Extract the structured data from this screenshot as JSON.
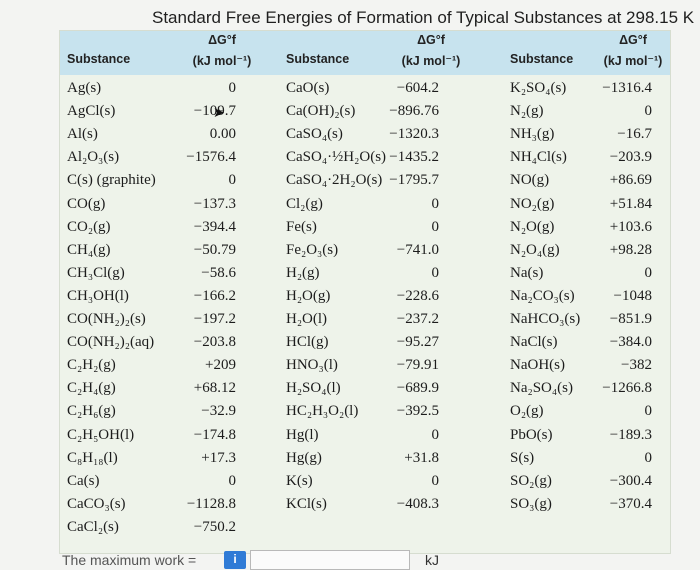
{
  "title": "Standard Free Energies of Formation of Typical Substances at 298.15 K",
  "header": {
    "substance_label": "Substance",
    "dg_label": "ΔG°f",
    "unit_label": "(kJ mol⁻¹)"
  },
  "columns": [
    {
      "rows": [
        {
          "substance": "Ag(s)",
          "value": "0"
        },
        {
          "substance": "AgCl(s)",
          "value": "−109.7"
        },
        {
          "substance": "Al(s)",
          "value": "0.00"
        },
        {
          "substance": "Al₂O₃(s)",
          "value": "−1576.4"
        },
        {
          "substance": "C(s) (graphite)",
          "value": "0"
        },
        {
          "substance": "CO(g)",
          "value": "−137.3"
        },
        {
          "substance": "CO₂(g)",
          "value": "−394.4"
        },
        {
          "substance": "CH₄(g)",
          "value": "−50.79"
        },
        {
          "substance": "CH₃Cl(g)",
          "value": "−58.6"
        },
        {
          "substance": "CH₃OH(l)",
          "value": "−166.2"
        },
        {
          "substance": "CO(NH₂)₂(s)",
          "value": "−197.2"
        },
        {
          "substance": "CO(NH₂)₂(aq)",
          "value": "−203.8"
        },
        {
          "substance": "C₂H₂(g)",
          "value": "+209"
        },
        {
          "substance": "C₂H₄(g)",
          "value": "+68.12"
        },
        {
          "substance": "C₂H₆(g)",
          "value": "−32.9"
        },
        {
          "substance": "C₂H₅OH(l)",
          "value": "−174.8"
        },
        {
          "substance": "C₈H₁₈(l)",
          "value": "+17.3"
        },
        {
          "substance": "Ca(s)",
          "value": "0"
        },
        {
          "substance": "CaCO₃(s)",
          "value": "−1128.8"
        },
        {
          "substance": "CaCl₂(s)",
          "value": "−750.2"
        }
      ]
    },
    {
      "rows": [
        {
          "substance": "CaO(s)",
          "value": "−604.2"
        },
        {
          "substance": "Ca(OH)₂(s)",
          "value": "−896.76"
        },
        {
          "substance": "CaSO₄(s)",
          "value": "−1320.3"
        },
        {
          "substance": "CaSO₄·½H₂O(s)",
          "value": "−1435.2"
        },
        {
          "substance": "CaSO₄·2H₂O(s)",
          "value": "−1795.7"
        },
        {
          "substance": "Cl₂(g)",
          "value": "0"
        },
        {
          "substance": "Fe(s)",
          "value": "0"
        },
        {
          "substance": "Fe₂O₃(s)",
          "value": "−741.0"
        },
        {
          "substance": "H₂(g)",
          "value": "0"
        },
        {
          "substance": "H₂O(g)",
          "value": "−228.6"
        },
        {
          "substance": "H₂O(l)",
          "value": "−237.2"
        },
        {
          "substance": "HCl(g)",
          "value": "−95.27"
        },
        {
          "substance": "HNO₃(l)",
          "value": "−79.91"
        },
        {
          "substance": "H₂SO₄(l)",
          "value": "−689.9"
        },
        {
          "substance": "HC₂H₃O₂(l)",
          "value": "−392.5"
        },
        {
          "substance": "Hg(l)",
          "value": "0"
        },
        {
          "substance": "Hg(g)",
          "value": "+31.8"
        },
        {
          "substance": "K(s)",
          "value": "0"
        },
        {
          "substance": "KCl(s)",
          "value": "−408.3"
        }
      ]
    },
    {
      "rows": [
        {
          "substance": "K₂SO₄(s)",
          "value": "−1316.4"
        },
        {
          "substance": "N₂(g)",
          "value": "0"
        },
        {
          "substance": "NH₃(g)",
          "value": "−16.7"
        },
        {
          "substance": "NH₄Cl(s)",
          "value": "−203.9"
        },
        {
          "substance": "NO(g)",
          "value": "+86.69"
        },
        {
          "substance": "NO₂(g)",
          "value": "+51.84"
        },
        {
          "substance": "N₂O(g)",
          "value": "+103.6"
        },
        {
          "substance": "N₂O₄(g)",
          "value": "+98.28"
        },
        {
          "substance": "Na(s)",
          "value": "0"
        },
        {
          "substance": "Na₂CO₃(s)",
          "value": "−1048"
        },
        {
          "substance": "NaHCO₃(s)",
          "value": "−851.9"
        },
        {
          "substance": "NaCl(s)",
          "value": "−384.0"
        },
        {
          "substance": "NaOH(s)",
          "value": "−382"
        },
        {
          "substance": "Na₂SO₄(s)",
          "value": "−1266.8"
        },
        {
          "substance": "O₂(g)",
          "value": "0"
        },
        {
          "substance": "PbO(s)",
          "value": "−189.3"
        },
        {
          "substance": "S(s)",
          "value": "0"
        },
        {
          "substance": "SO₂(g)",
          "value": "−300.4"
        },
        {
          "substance": "SO₃(g)",
          "value": "−370.4"
        }
      ]
    }
  ],
  "footer": {
    "prompt_text": "The maximum work =",
    "info_icon_symbol": "i",
    "answer_value": "",
    "unit": "kJ"
  },
  "icons": {
    "info": "info-icon",
    "cursor": "mouse-cursor-icon"
  },
  "colors": {
    "header_bg": "#c7e3ee",
    "table_bg": "#eef3ea",
    "page_bg": "#f3f4f2",
    "info_icon_bg": "#2f7bd6"
  }
}
